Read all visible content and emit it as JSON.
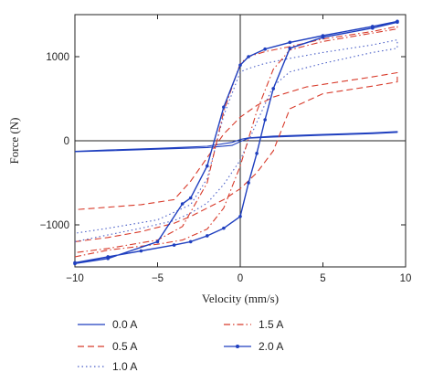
{
  "chart_data": {
    "type": "line",
    "title": "",
    "xlabel": "Velocity (mm/s)",
    "ylabel": "Force (N)",
    "xlim": [
      -10,
      10
    ],
    "ylim": [
      -1500,
      1500
    ],
    "xticks": [
      -10,
      -5,
      0,
      5,
      10
    ],
    "yticks": [
      -1000,
      0,
      1000
    ],
    "xtick_labels": [
      "−10",
      "−5",
      "0",
      "5",
      "10"
    ],
    "ytick_labels": [
      "−1000",
      "0",
      "1000"
    ],
    "grid": false,
    "zero_lines": true,
    "legend_position": "below",
    "series": [
      {
        "name": "0.0 A",
        "color": "#1f3fbf",
        "style": "solid",
        "marker": "none",
        "x": [
          -10,
          -8,
          -5,
          -2,
          -0.5,
          0,
          0.5,
          2,
          5,
          8,
          9.5,
          9.5,
          8,
          5,
          2,
          0.5,
          0,
          -0.5,
          -2,
          -5,
          -8,
          -10
        ],
        "y": [
          -130,
          -120,
          -100,
          -80,
          -55,
          -10,
          30,
          45,
          65,
          85,
          100,
          110,
          95,
          75,
          55,
          35,
          15,
          -20,
          -65,
          -90,
          -110,
          -125
        ]
      },
      {
        "name": "0.5 A",
        "color": "#d83a2a",
        "style": "dashed",
        "marker": "none",
        "x": [
          -10,
          -8,
          -6,
          -4,
          -3,
          -2,
          -1,
          0,
          1,
          2,
          3,
          5,
          8,
          9.5,
          9.5,
          8,
          6,
          4,
          3,
          2,
          1,
          0,
          -1,
          -2,
          -3,
          -4,
          -6,
          -8,
          -10
        ],
        "y": [
          -1200,
          -1150,
          -1080,
          -980,
          -900,
          -800,
          -700,
          -570,
          -380,
          -120,
          380,
          560,
          650,
          700,
          810,
          760,
          700,
          640,
          580,
          520,
          420,
          280,
          80,
          -200,
          -480,
          -700,
          -760,
          -790,
          -820
        ]
      },
      {
        "name": "1.0 A",
        "color": "#4a5fc7",
        "style": "dotted",
        "marker": "none",
        "x": [
          -10,
          -8,
          -6,
          -4,
          -3,
          -2,
          -1,
          0,
          1,
          2,
          3,
          5,
          8,
          9.5,
          9.5,
          8,
          5,
          3,
          1.5,
          0.5,
          0,
          -1,
          -2,
          -3,
          -5,
          -8,
          -10
        ],
        "y": [
          -1200,
          -1120,
          -1040,
          -950,
          -860,
          -740,
          -520,
          -230,
          220,
          650,
          820,
          920,
          1050,
          1100,
          1200,
          1140,
          1050,
          980,
          920,
          860,
          820,
          300,
          -450,
          -760,
          -940,
          -1040,
          -1100
        ]
      },
      {
        "name": "1.5 A",
        "color": "#d83a2a",
        "style": "dashdot",
        "marker": "none",
        "x": [
          -10,
          -8,
          -5,
          -3.5,
          -2,
          -1,
          0,
          1,
          2,
          3,
          5,
          8,
          9.5,
          9.5,
          8,
          5,
          3,
          1.5,
          0.5,
          0,
          -1,
          -2,
          -3.5,
          -5,
          -8,
          -10
        ],
        "y": [
          -1380,
          -1300,
          -1230,
          -1180,
          -1050,
          -800,
          -300,
          350,
          850,
          1080,
          1180,
          1280,
          1330,
          1360,
          1300,
          1210,
          1120,
          1060,
          1000,
          920,
          350,
          -500,
          -1020,
          -1180,
          -1280,
          -1330
        ]
      },
      {
        "name": "2.0 A",
        "color": "#1f3fbf",
        "style": "solid",
        "marker": "dot",
        "x": [
          -10,
          -8,
          -6,
          -4,
          -3,
          -2,
          -1,
          0,
          0.5,
          1,
          1.5,
          2,
          3,
          5,
          8,
          9.5,
          9.5,
          8,
          5,
          3,
          1.5,
          0.5,
          0,
          -1,
          -2,
          -3,
          -3.5,
          -5,
          -8,
          -10
        ],
        "y": [
          -1450,
          -1380,
          -1310,
          -1240,
          -1200,
          -1130,
          -1040,
          -900,
          -500,
          -150,
          250,
          620,
          1100,
          1230,
          1340,
          1410,
          1420,
          1360,
          1250,
          1170,
          1090,
          1000,
          900,
          400,
          -300,
          -680,
          -750,
          -1200,
          -1400,
          -1460
        ]
      }
    ]
  },
  "legend": [
    {
      "label": "0.0 A",
      "color": "#1f3fbf",
      "style": "solid",
      "marker": "none"
    },
    {
      "label": "0.5 A",
      "color": "#d83a2a",
      "style": "dashed",
      "marker": "none"
    },
    {
      "label": "1.0 A",
      "color": "#4a5fc7",
      "style": "dotted",
      "marker": "none"
    },
    {
      "label": "1.5 A",
      "color": "#d83a2a",
      "style": "dashdot",
      "marker": "none"
    },
    {
      "label": "2.0 A",
      "color": "#1f3fbf",
      "style": "solid",
      "marker": "dot"
    }
  ]
}
